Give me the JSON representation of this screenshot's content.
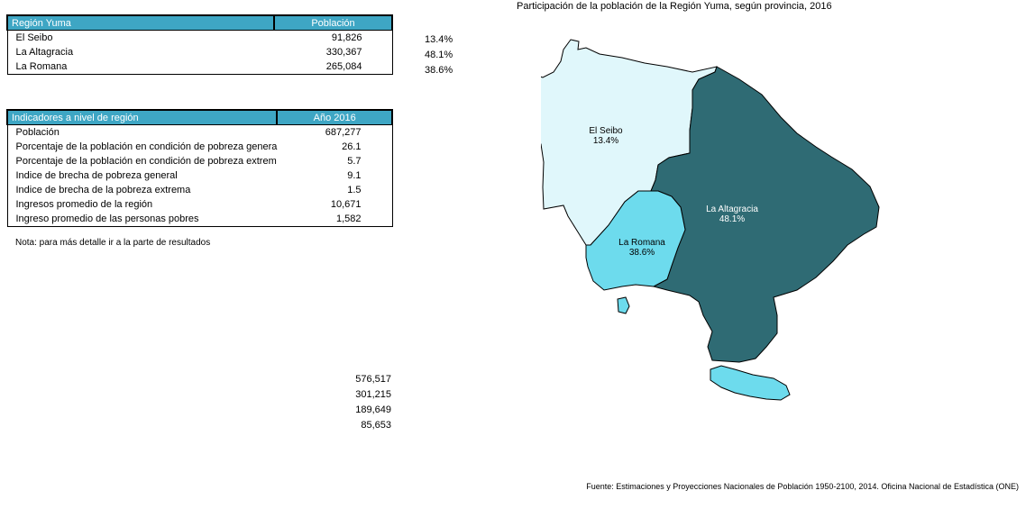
{
  "table1": {
    "header_region": "Región Yuma",
    "header_value": "Población",
    "rows": [
      {
        "name": "El Seibo",
        "value": "91,826",
        "pct": "13.4%"
      },
      {
        "name": "La Altagracia",
        "value": "330,367",
        "pct": "48.1%"
      },
      {
        "name": "La Romana",
        "value": "265,084",
        "pct": "38.6%"
      }
    ]
  },
  "table2": {
    "header_label": "Indicadores a nivel de región",
    "header_value": "Año 2016",
    "rows": [
      {
        "label": "Población",
        "value": "687,277"
      },
      {
        "label": "Porcentaje de la población en condición de pobreza genera",
        "value": "26.1"
      },
      {
        "label": "Porcentaje de la población en condición de pobreza extrem",
        "value": "5.7"
      },
      {
        "label": "Indice de brecha de pobreza general",
        "value": "9.1"
      },
      {
        "label": "Indice de  brecha de la pobreza extrema",
        "value": "1.5"
      },
      {
        "label": "Ingresos promedio de la región",
        "value": "10,671"
      },
      {
        "label": "Ingreso promedio de las personas pobres",
        "value": "1,582"
      }
    ]
  },
  "note": "Nota: para más detalle ir a la parte de resultados",
  "extra_values": [
    "576,517",
    "301,215",
    "189,649",
    "85,653"
  ],
  "map": {
    "title": "Participación de la población de la Región Yuma, según provincia, 2016",
    "regions": [
      {
        "name": "El Seibo",
        "pct": "13.4%",
        "color": "#e0f7fb"
      },
      {
        "name": "La Altagracia",
        "pct": "48.1%",
        "color": "#2f6b74"
      },
      {
        "name": "La Romana",
        "pct": "38.6%",
        "color": "#6ddbed"
      }
    ],
    "source": "Fuente: Estimaciones y Proyecciones Nacionales de Población 1950-2100, 2014. Oficina Nacional de Estadística (ONE)"
  }
}
